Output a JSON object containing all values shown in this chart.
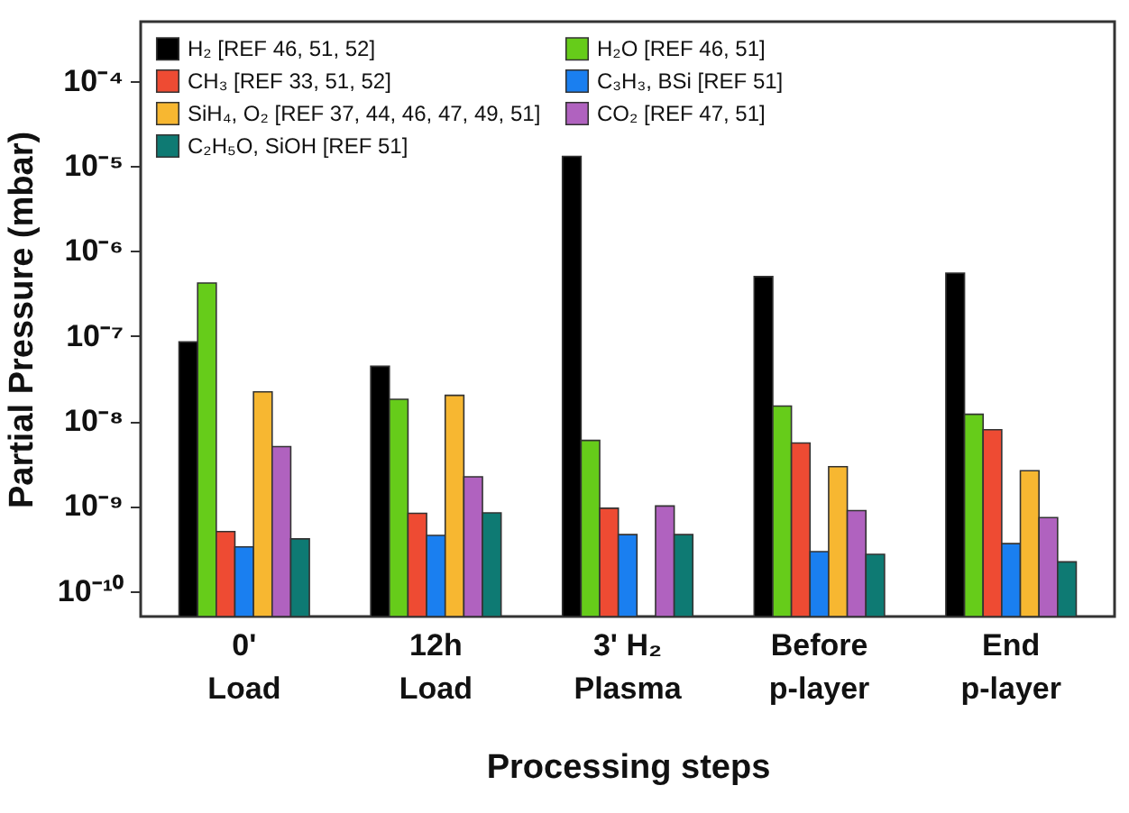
{
  "chart_data": {
    "type": "bar",
    "xlabel": "Processing steps",
    "ylabel": "Partial Pressure (mbar)",
    "categories": [
      "0'\nLoad",
      "12h\nLoad",
      "3' H₂\nPlasma",
      "Before\np-layer",
      "End\np-layer"
    ],
    "series": [
      {
        "name": "H₂ [REF 46, 51, 52]",
        "color": "#000000",
        "values": [
          8.5e-08,
          4.4e-08,
          1.3e-05,
          5e-07,
          5.5e-07
        ]
      },
      {
        "name": "H₂O [REF 46, 51]",
        "color": "#66cc1a",
        "values": [
          4.2e-07,
          1.8e-08,
          5.9e-09,
          1.5e-08,
          1.2e-08
        ]
      },
      {
        "name": "CH₃ [REF 33, 51, 52]",
        "color": "#ee4b33",
        "values": [
          5e-10,
          8.2e-10,
          9.4e-10,
          5.5e-09,
          7.9e-09
        ]
      },
      {
        "name": "C₃H₃, BSi [REF 51]",
        "color": "#1a7ff0",
        "values": [
          3.3e-10,
          4.5e-10,
          4.6e-10,
          2.9e-10,
          3.6e-10
        ]
      },
      {
        "name": "SiH₄, O₂ [REF 37, 44, 46, 47, 49, 51]",
        "color": "#f7b731",
        "values": [
          2.2e-08,
          2e-08,
          null,
          2.9e-09,
          2.6e-09
        ]
      },
      {
        "name": "CO₂ [REF 47, 51]",
        "color": "#b062bf",
        "values": [
          5e-09,
          2.2e-09,
          1e-09,
          8.8e-10,
          7.3e-10
        ]
      },
      {
        "name": "C₂H₅O, SiOH [REF 51]",
        "color": "#0e7a73",
        "values": [
          4.1e-10,
          8.3e-10,
          4.6e-10,
          2.7e-10,
          2.2e-10
        ]
      }
    ],
    "log": true,
    "ylim": [
      5e-11,
      0.0005
    ],
    "yticks": [
      {
        "value": 1e-10,
        "label": "10⁻¹⁰"
      },
      {
        "value": 1e-09,
        "label": "10⁻⁹"
      },
      {
        "value": 1e-08,
        "label": "10⁻⁸"
      },
      {
        "value": 1e-07,
        "label": "10⁻⁷"
      },
      {
        "value": 1e-06,
        "label": "10⁻⁶"
      },
      {
        "value": 1e-05,
        "label": "10⁻⁵"
      },
      {
        "value": 0.0001,
        "label": "10⁻⁴"
      }
    ],
    "legend": "top left",
    "grid": false
  }
}
